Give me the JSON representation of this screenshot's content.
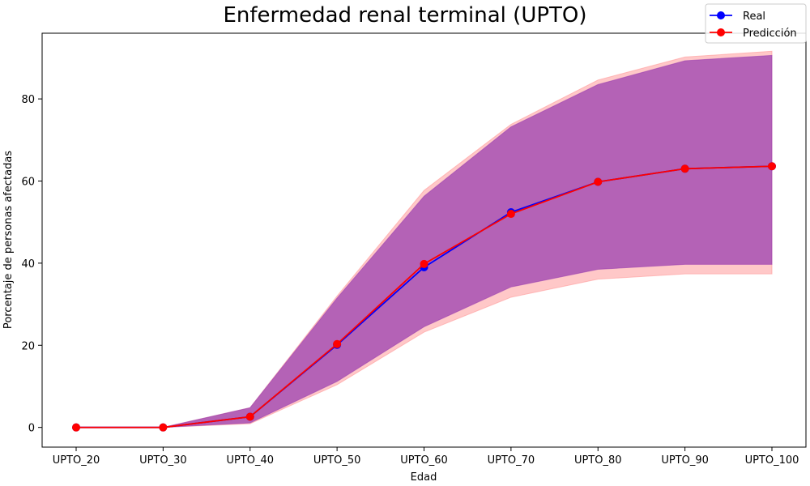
{
  "chart_data": {
    "type": "line",
    "title": "Enfermedad renal terminal (UPTO)",
    "xlabel": "Edad",
    "ylabel": "Porcentaje de personas afectadas",
    "categories": [
      "UPTO_20",
      "UPTO_30",
      "UPTO_40",
      "UPTO_50",
      "UPTO_60",
      "UPTO_70",
      "UPTO_80",
      "UPTO_90",
      "UPTO_100"
    ],
    "ylim": [
      -4.8,
      96
    ],
    "yticks": [
      0,
      20,
      40,
      60,
      80
    ],
    "grid": false,
    "legend_position": "top-right",
    "series": [
      {
        "name": "Real",
        "color": "#0000ff",
        "values": [
          0.0,
          0.0,
          2.6,
          20.1,
          39.0,
          52.4,
          59.8,
          63.0,
          63.6
        ],
        "band_lower": [
          0.0,
          0.0,
          1.1,
          11.2,
          24.5,
          34.2,
          38.5,
          39.7,
          39.7
        ],
        "band_upper": [
          0.0,
          0.0,
          4.8,
          31.5,
          56.3,
          73.2,
          83.5,
          89.3,
          90.6
        ],
        "band_color": "#9b40b0"
      },
      {
        "name": "Predicción",
        "color": "#ff0000",
        "values": [
          0.0,
          0.0,
          2.6,
          20.3,
          39.8,
          52.0,
          59.8,
          63.0,
          63.6
        ],
        "band_lower": [
          0.0,
          0.0,
          0.9,
          10.4,
          23.2,
          31.7,
          36.1,
          37.4,
          37.4
        ],
        "band_upper": [
          0.0,
          0.0,
          4.8,
          32.0,
          57.7,
          73.8,
          84.6,
          90.2,
          91.6
        ],
        "band_color": "#ff9a9a"
      }
    ]
  }
}
